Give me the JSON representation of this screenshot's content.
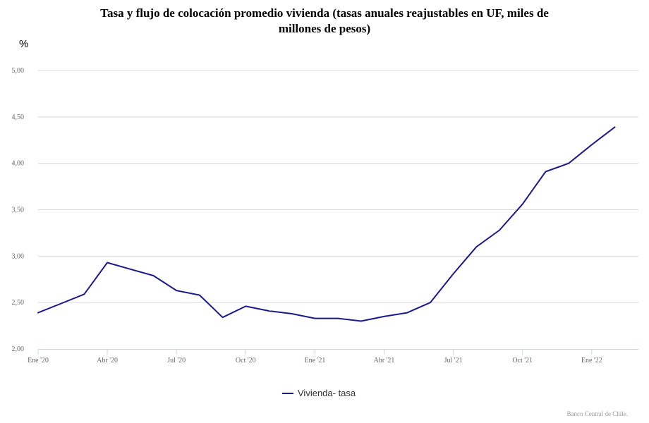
{
  "chart_data": {
    "type": "line",
    "title": "Tasa y flujo de colocación promedio vivienda (tasas anuales reajustables en UF, miles de millones de pesos)",
    "ylabel": "%",
    "xlabel": "",
    "ylim": [
      2.0,
      5.0
    ],
    "y_ticks": [
      "2,00",
      "2,50",
      "3,00",
      "3,50",
      "4,00",
      "4,50",
      "5,00"
    ],
    "y_tick_values": [
      2.0,
      2.5,
      3.0,
      3.5,
      4.0,
      4.5,
      5.0
    ],
    "x_ticks": [
      "Ene '20",
      "Abr '20",
      "Jul '20",
      "Oct '20",
      "Ene '21",
      "Abr '21",
      "Jul '21",
      "Oct '21",
      "Ene '22"
    ],
    "x_tick_index": [
      0,
      3,
      6,
      9,
      12,
      15,
      18,
      21,
      24
    ],
    "x": [
      "Ene '20",
      "Feb '20",
      "Mar '20",
      "Abr '20",
      "May '20",
      "Jun '20",
      "Jul '20",
      "Ago '20",
      "Sep '20",
      "Oct '20",
      "Nov '20",
      "Dic '20",
      "Ene '21",
      "Feb '21",
      "Mar '21",
      "Abr '21",
      "May '21",
      "Jun '21",
      "Jul '21",
      "Ago '21",
      "Sep '21",
      "Oct '21",
      "Nov '21",
      "Dic '21",
      "Ene '22",
      "Feb '22"
    ],
    "series": [
      {
        "name": "Vivienda- tasa",
        "color": "#1a1a8c",
        "values": [
          2.39,
          2.49,
          2.59,
          2.93,
          2.86,
          2.79,
          2.63,
          2.58,
          2.34,
          2.46,
          2.41,
          2.38,
          2.33,
          2.33,
          2.3,
          2.35,
          2.39,
          2.5,
          2.81,
          3.1,
          3.28,
          3.56,
          3.91,
          4.0,
          4.2,
          4.39
        ]
      }
    ],
    "legend_position": "bottom-center",
    "grid": true
  },
  "credit": "Banco Central de Chile."
}
